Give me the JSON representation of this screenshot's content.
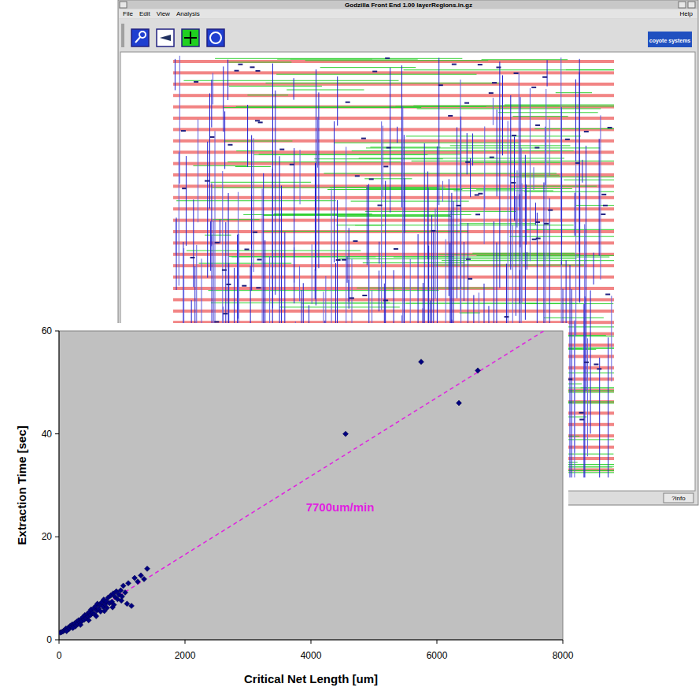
{
  "window": {
    "title": "Godzilla Front End 1.00 layerRegions.in.gz",
    "menus": [
      "File",
      "Edit",
      "View",
      "Analysis"
    ],
    "help": "Help",
    "logo": "coyote systems",
    "status": "?info"
  },
  "chart_data": {
    "type": "scatter",
    "x_label": "Critical Net Length [um]",
    "y_label": "Extraction Time [sec]",
    "annotation": "7700um/min",
    "color": "#000080",
    "marker": "diamond",
    "grid": false,
    "xlim": [
      0,
      8000
    ],
    "ylim": [
      0,
      60
    ],
    "xticks": [
      0,
      2000,
      4000,
      6000,
      8000
    ],
    "yticks": [
      0,
      20,
      40,
      60
    ],
    "x": [
      20,
      40,
      60,
      80,
      100,
      110,
      130,
      150,
      160,
      180,
      200,
      210,
      230,
      250,
      260,
      280,
      300,
      310,
      330,
      350,
      360,
      380,
      400,
      410,
      430,
      450,
      460,
      480,
      500,
      510,
      530,
      550,
      560,
      580,
      600,
      610,
      630,
      650,
      660,
      680,
      700,
      710,
      730,
      750,
      760,
      780,
      800,
      820,
      840,
      860,
      870,
      890,
      910,
      930,
      950,
      980,
      1000,
      1020,
      1050,
      1080,
      1100,
      1150,
      1200,
      1250,
      1300,
      1350,
      1400,
      120,
      220,
      340,
      470,
      590,
      720,
      850,
      990,
      4550,
      5750,
      6350,
      6650
    ],
    "values": [
      1.4,
      1.5,
      1.6,
      1.8,
      1.9,
      2.2,
      2.0,
      2.4,
      2.1,
      2.7,
      2.5,
      3.0,
      2.8,
      3.2,
      2.6,
      3.5,
      3.1,
      3.8,
      3.4,
      4.0,
      3.6,
      4.4,
      3.9,
      4.8,
      4.2,
      5.0,
      4.5,
      5.4,
      4.8,
      5.9,
      5.2,
      6.1,
      5.0,
      6.5,
      5.7,
      7.0,
      6.0,
      6.8,
      5.5,
      7.3,
      6.4,
      7.8,
      6.9,
      7.5,
      6.2,
      8.2,
      7.1,
      8.6,
      7.4,
      9.0,
      6.8,
      8.3,
      9.4,
      7.9,
      8.8,
      9.6,
      8.4,
      10.5,
      9.2,
      7.0,
      11.0,
      6.6,
      12.0,
      11.3,
      12.5,
      11.8,
      13.8,
      1.7,
      2.3,
      2.9,
      3.8,
      4.6,
      5.6,
      6.3,
      7.6,
      40,
      54,
      46,
      52.3
    ],
    "trend": {
      "type": "line",
      "color": "#e020e0",
      "line_style": "dashed",
      "x": [
        0,
        7700
      ],
      "values": [
        1.3,
        60
      ]
    }
  }
}
